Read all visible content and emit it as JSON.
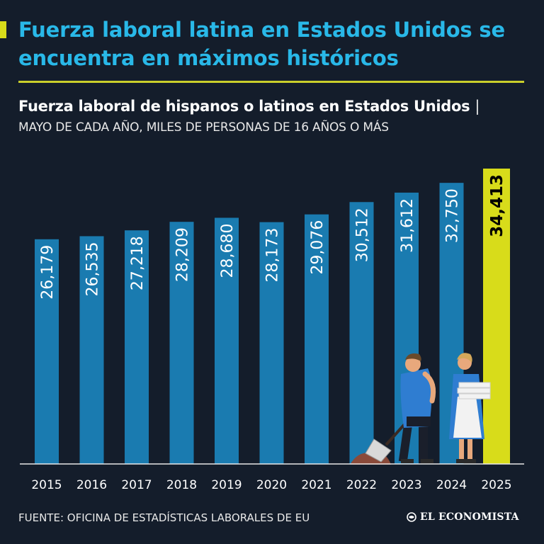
{
  "headline": "Fuerza laboral latina en Estados Unidos se encuentra en máximos históricos",
  "subtitle": "Fuerza laboral de hispanos o latinos en Estados Unidos",
  "subtitle_sep": "|",
  "units": "MAYO DE CADA AÑO, MILES DE PERSONAS DE 16 AÑOS O MÁS",
  "source": "FUENTE: OFICINA DE ESTADÍSTICAS LABORALES DE EU",
  "brand": "EL ECONOMISTA",
  "colors": {
    "background": "#141d2b",
    "title": "#29b8e8",
    "bar": "#1a7bb0",
    "highlight": "#d8dc1a",
    "rule": "#c9cf2b"
  },
  "chart_data": {
    "type": "bar",
    "categories": [
      "2015",
      "2016",
      "2017",
      "2018",
      "2019",
      "2020",
      "2021",
      "2022",
      "2023",
      "2024",
      "2025"
    ],
    "values": [
      26179,
      26535,
      27218,
      28209,
      28680,
      28173,
      29076,
      30512,
      31612,
      32750,
      34413
    ],
    "value_labels": [
      "26,179",
      "26,535",
      "27,218",
      "28,209",
      "28,680",
      "28,173",
      "29,076",
      "30,512",
      "31,612",
      "32,750",
      "34,413"
    ],
    "highlight_index": 10,
    "ylim": [
      0,
      34413
    ],
    "grid": false,
    "legend": "none"
  },
  "illustration": [
    "worker-sweeping-illustration",
    "worker-carrying-towels-illustration"
  ]
}
